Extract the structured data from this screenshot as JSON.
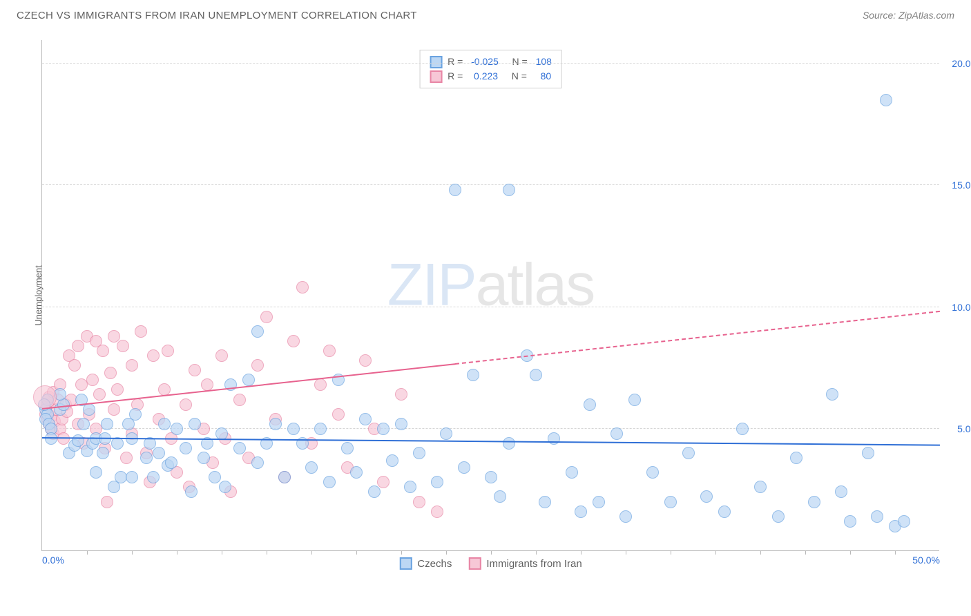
{
  "title": "CZECH VS IMMIGRANTS FROM IRAN UNEMPLOYMENT CORRELATION CHART",
  "source": "Source: ZipAtlas.com",
  "ylabel": "Unemployment",
  "watermark_bold": "ZIP",
  "watermark_rest": "atlas",
  "chart": {
    "type": "scatter",
    "xlim": [
      0,
      50
    ],
    "ylim": [
      0,
      21
    ],
    "x_tick_labels": [
      {
        "x": 0,
        "label": "0.0%"
      },
      {
        "x": 50,
        "label": "50.0%"
      }
    ],
    "x_ticks": [
      2.5,
      5,
      7.5,
      10,
      12.5,
      15,
      17.5,
      20,
      22.5,
      25,
      27.5,
      30,
      32.5,
      35,
      37.5,
      40,
      42.5,
      45,
      47.5
    ],
    "y_ticks": [
      {
        "y": 5,
        "label": "5.0%"
      },
      {
        "y": 10,
        "label": "10.0%"
      },
      {
        "y": 15,
        "label": "15.0%"
      },
      {
        "y": 20,
        "label": "20.0%"
      }
    ],
    "marker_radius": 9,
    "marker_stroke": 1.5,
    "background_color": "#ffffff",
    "grid_color": "#d6d6d6",
    "axis_color": "#b9b9b9"
  },
  "series": {
    "czechs": {
      "label": "Czechs",
      "fill": "#bcd7f4",
      "stroke": "#6aa3e0",
      "fill_opacity": 0.7,
      "R": "-0.025",
      "N": "108",
      "trend": {
        "x1": 0,
        "y1": 4.6,
        "x2": 50,
        "y2": 4.3,
        "solid_x_end": 50,
        "color": "#2f6fd6",
        "width": 2
      },
      "points": [
        [
          0.2,
          5.8
        ],
        [
          0.3,
          5.6
        ],
        [
          0.3,
          6.2
        ],
        [
          0.1,
          6.0
        ],
        [
          0.2,
          5.4
        ],
        [
          0.4,
          5.2
        ],
        [
          0.5,
          5.0
        ],
        [
          0.5,
          4.6
        ],
        [
          1.0,
          5.8
        ],
        [
          1.2,
          6.0
        ],
        [
          1.0,
          6.4
        ],
        [
          1.5,
          4.0
        ],
        [
          1.8,
          4.3
        ],
        [
          2.0,
          4.5
        ],
        [
          2.2,
          6.2
        ],
        [
          2.3,
          5.2
        ],
        [
          2.5,
          4.1
        ],
        [
          2.6,
          5.8
        ],
        [
          2.8,
          4.4
        ],
        [
          3.0,
          3.2
        ],
        [
          3.0,
          4.6
        ],
        [
          3.4,
          4.0
        ],
        [
          3.5,
          4.6
        ],
        [
          3.6,
          5.2
        ],
        [
          4.0,
          2.6
        ],
        [
          4.2,
          4.4
        ],
        [
          4.4,
          3.0
        ],
        [
          4.8,
          5.2
        ],
        [
          5.0,
          3.0
        ],
        [
          5.0,
          4.6
        ],
        [
          5.2,
          5.6
        ],
        [
          5.8,
          3.8
        ],
        [
          6.0,
          4.4
        ],
        [
          6.2,
          3.0
        ],
        [
          6.5,
          4.0
        ],
        [
          6.8,
          5.2
        ],
        [
          7.0,
          3.5
        ],
        [
          7.2,
          3.6
        ],
        [
          7.5,
          5.0
        ],
        [
          8.0,
          4.2
        ],
        [
          8.3,
          2.4
        ],
        [
          8.5,
          5.2
        ],
        [
          9.0,
          3.8
        ],
        [
          9.2,
          4.4
        ],
        [
          9.6,
          3.0
        ],
        [
          10.0,
          4.8
        ],
        [
          10.2,
          2.6
        ],
        [
          10.5,
          6.8
        ],
        [
          11.0,
          4.2
        ],
        [
          11.5,
          7.0
        ],
        [
          12.0,
          3.6
        ],
        [
          12.0,
          9.0
        ],
        [
          12.5,
          4.4
        ],
        [
          13.0,
          5.2
        ],
        [
          13.5,
          3.0
        ],
        [
          14.0,
          5.0
        ],
        [
          14.5,
          4.4
        ],
        [
          15.0,
          3.4
        ],
        [
          15.5,
          5.0
        ],
        [
          16.0,
          2.8
        ],
        [
          16.5,
          7.0
        ],
        [
          17.0,
          4.2
        ],
        [
          17.5,
          3.2
        ],
        [
          18.0,
          5.4
        ],
        [
          18.5,
          2.4
        ],
        [
          19.0,
          5.0
        ],
        [
          19.5,
          3.7
        ],
        [
          20.0,
          5.2
        ],
        [
          20.5,
          2.6
        ],
        [
          21.0,
          4.0
        ],
        [
          22.0,
          2.8
        ],
        [
          22.5,
          4.8
        ],
        [
          23.0,
          14.8
        ],
        [
          23.5,
          3.4
        ],
        [
          24.0,
          7.2
        ],
        [
          25.0,
          3.0
        ],
        [
          25.5,
          2.2
        ],
        [
          26.0,
          14.8
        ],
        [
          26.0,
          4.4
        ],
        [
          27.0,
          8.0
        ],
        [
          27.5,
          7.2
        ],
        [
          28.0,
          2.0
        ],
        [
          28.5,
          4.6
        ],
        [
          29.5,
          3.2
        ],
        [
          30.0,
          1.6
        ],
        [
          30.5,
          6.0
        ],
        [
          31.0,
          2.0
        ],
        [
          32.0,
          4.8
        ],
        [
          32.5,
          1.4
        ],
        [
          33.0,
          6.2
        ],
        [
          34.0,
          3.2
        ],
        [
          35.0,
          2.0
        ],
        [
          36.0,
          4.0
        ],
        [
          37.0,
          2.2
        ],
        [
          38.0,
          1.6
        ],
        [
          39.0,
          5.0
        ],
        [
          40.0,
          2.6
        ],
        [
          41.0,
          1.4
        ],
        [
          42.0,
          3.8
        ],
        [
          43.0,
          2.0
        ],
        [
          44.0,
          6.4
        ],
        [
          44.5,
          2.4
        ],
        [
          45.0,
          1.2
        ],
        [
          46.0,
          4.0
        ],
        [
          46.5,
          1.4
        ],
        [
          47.0,
          18.5
        ],
        [
          47.5,
          1.0
        ],
        [
          48.0,
          1.2
        ]
      ]
    },
    "iran": {
      "label": "Immigrants from Iran",
      "fill": "#f7c7d6",
      "stroke": "#e885a5",
      "fill_opacity": 0.7,
      "R": "0.223",
      "N": "80",
      "trend": {
        "x1": 0,
        "y1": 5.8,
        "x2": 50,
        "y2": 9.8,
        "solid_x_end": 23,
        "color": "#e7628e",
        "width": 2
      },
      "points": [
        [
          0.2,
          5.6
        ],
        [
          0.3,
          5.4
        ],
        [
          0.3,
          6.0
        ],
        [
          0.4,
          5.2
        ],
        [
          0.4,
          6.3
        ],
        [
          0.5,
          5.0
        ],
        [
          0.5,
          5.5
        ],
        [
          0.6,
          4.8
        ],
        [
          0.6,
          6.5
        ],
        [
          0.7,
          5.3
        ],
        [
          0.8,
          5.8
        ],
        [
          0.9,
          6.2
        ],
        [
          1.0,
          5.0
        ],
        [
          1.0,
          6.8
        ],
        [
          1.1,
          5.4
        ],
        [
          1.2,
          4.6
        ],
        [
          1.3,
          6.0
        ],
        [
          1.4,
          5.7
        ],
        [
          1.5,
          8.0
        ],
        [
          1.6,
          6.2
        ],
        [
          1.8,
          7.6
        ],
        [
          2.0,
          5.2
        ],
        [
          2.0,
          8.4
        ],
        [
          2.2,
          6.8
        ],
        [
          2.3,
          4.4
        ],
        [
          2.5,
          8.8
        ],
        [
          2.6,
          5.6
        ],
        [
          2.8,
          7.0
        ],
        [
          3.0,
          8.6
        ],
        [
          3.0,
          5.0
        ],
        [
          3.2,
          6.4
        ],
        [
          3.4,
          8.2
        ],
        [
          3.5,
          4.2
        ],
        [
          3.6,
          2.0
        ],
        [
          3.8,
          7.3
        ],
        [
          4.0,
          8.8
        ],
        [
          4.0,
          5.8
        ],
        [
          4.2,
          6.6
        ],
        [
          4.5,
          8.4
        ],
        [
          4.7,
          3.8
        ],
        [
          5.0,
          7.6
        ],
        [
          5.0,
          4.8
        ],
        [
          5.3,
          6.0
        ],
        [
          5.5,
          9.0
        ],
        [
          5.8,
          4.0
        ],
        [
          6.0,
          2.8
        ],
        [
          6.2,
          8.0
        ],
        [
          6.5,
          5.4
        ],
        [
          6.8,
          6.6
        ],
        [
          7.0,
          8.2
        ],
        [
          7.2,
          4.6
        ],
        [
          7.5,
          3.2
        ],
        [
          8.0,
          6.0
        ],
        [
          8.2,
          2.6
        ],
        [
          8.5,
          7.4
        ],
        [
          9.0,
          5.0
        ],
        [
          9.2,
          6.8
        ],
        [
          9.5,
          3.6
        ],
        [
          10.0,
          8.0
        ],
        [
          10.2,
          4.6
        ],
        [
          10.5,
          2.4
        ],
        [
          11.0,
          6.2
        ],
        [
          11.5,
          3.8
        ],
        [
          12.0,
          7.6
        ],
        [
          12.5,
          9.6
        ],
        [
          13.0,
          5.4
        ],
        [
          13.5,
          3.0
        ],
        [
          14.0,
          8.6
        ],
        [
          14.5,
          10.8
        ],
        [
          15.0,
          4.4
        ],
        [
          15.5,
          6.8
        ],
        [
          16.0,
          8.2
        ],
        [
          16.5,
          5.6
        ],
        [
          17.0,
          3.4
        ],
        [
          18.0,
          7.8
        ],
        [
          18.5,
          5.0
        ],
        [
          19.0,
          2.8
        ],
        [
          20.0,
          6.4
        ],
        [
          21.0,
          2.0
        ],
        [
          22.0,
          1.6
        ]
      ]
    }
  },
  "legend_top": [
    {
      "swatch": "czechs",
      "R_label": "R = ",
      "R": "-0.025",
      "N_label": "   N = ",
      "N": "108"
    },
    {
      "swatch": "iran",
      "R_label": "R = ",
      "R": " 0.223",
      "N_label": "   N = ",
      "N": "  80"
    }
  ]
}
